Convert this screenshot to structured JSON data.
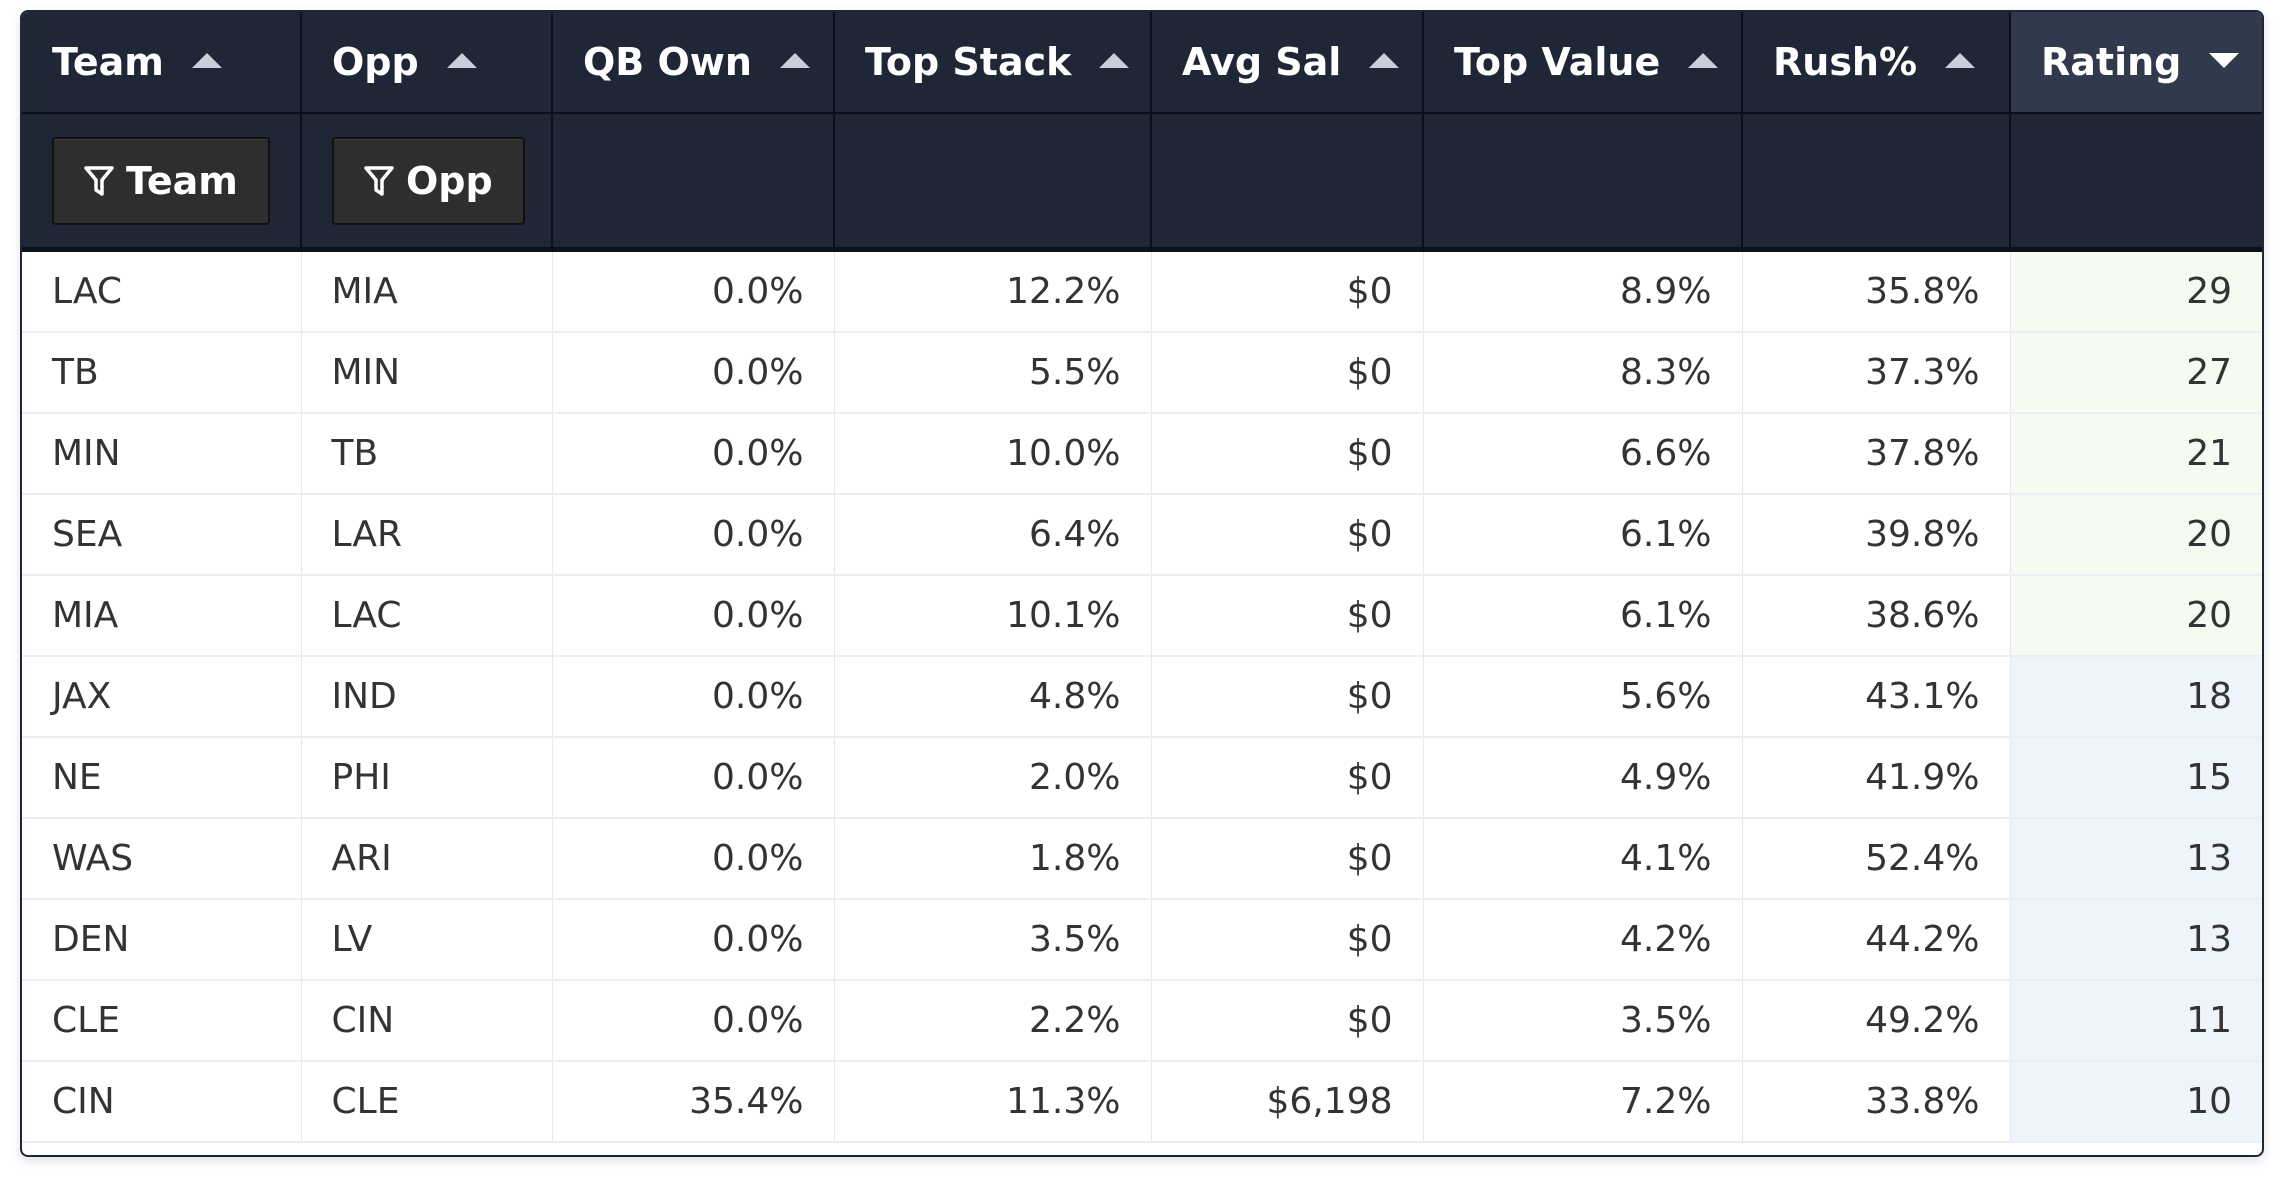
{
  "columns": [
    {
      "label": "Team",
      "sort": "up"
    },
    {
      "label": "Opp",
      "sort": "up"
    },
    {
      "label": "QB Own",
      "sort": "up"
    },
    {
      "label": "Top Stack",
      "sort": "up"
    },
    {
      "label": "Avg Sal",
      "sort": "up"
    },
    {
      "label": "Top Value",
      "sort": "up"
    },
    {
      "label": "Rush%",
      "sort": "up"
    },
    {
      "label": "Rating",
      "sort": "down"
    }
  ],
  "filters": {
    "team_label": "Team",
    "opp_label": "Opp"
  },
  "rows": [
    [
      "LAC",
      "MIA",
      "0.0%",
      "12.2%",
      "$0",
      "8.9%",
      "35.8%",
      "29"
    ],
    [
      "TB",
      "MIN",
      "0.0%",
      "5.5%",
      "$0",
      "8.3%",
      "37.3%",
      "27"
    ],
    [
      "MIN",
      "TB",
      "0.0%",
      "10.0%",
      "$0",
      "6.6%",
      "37.8%",
      "21"
    ],
    [
      "SEA",
      "LAR",
      "0.0%",
      "6.4%",
      "$0",
      "6.1%",
      "39.8%",
      "20"
    ],
    [
      "MIA",
      "LAC",
      "0.0%",
      "10.1%",
      "$0",
      "6.1%",
      "38.6%",
      "20"
    ],
    [
      "JAX",
      "IND",
      "0.0%",
      "4.8%",
      "$0",
      "5.6%",
      "43.1%",
      "18"
    ],
    [
      "NE",
      "PHI",
      "0.0%",
      "2.0%",
      "$0",
      "4.9%",
      "41.9%",
      "15"
    ],
    [
      "WAS",
      "ARI",
      "0.0%",
      "1.8%",
      "$0",
      "4.1%",
      "52.4%",
      "13"
    ],
    [
      "DEN",
      "LV",
      "0.0%",
      "3.5%",
      "$0",
      "4.2%",
      "44.2%",
      "13"
    ],
    [
      "CLE",
      "CIN",
      "0.0%",
      "2.2%",
      "$0",
      "3.5%",
      "49.2%",
      "11"
    ],
    [
      "CIN",
      "CLE",
      "35.4%",
      "11.3%",
      "$6,198",
      "7.2%",
      "33.8%",
      "10"
    ]
  ],
  "colors": {
    "header_bg": "#1f2737",
    "rating_high_bg": "#f5fbf0",
    "rating_low_bg": "#eef4fb"
  },
  "icons": {
    "filter": "filter-icon",
    "sort_up": "sort-ascending-icon",
    "sort_down": "sort-descending-icon"
  }
}
